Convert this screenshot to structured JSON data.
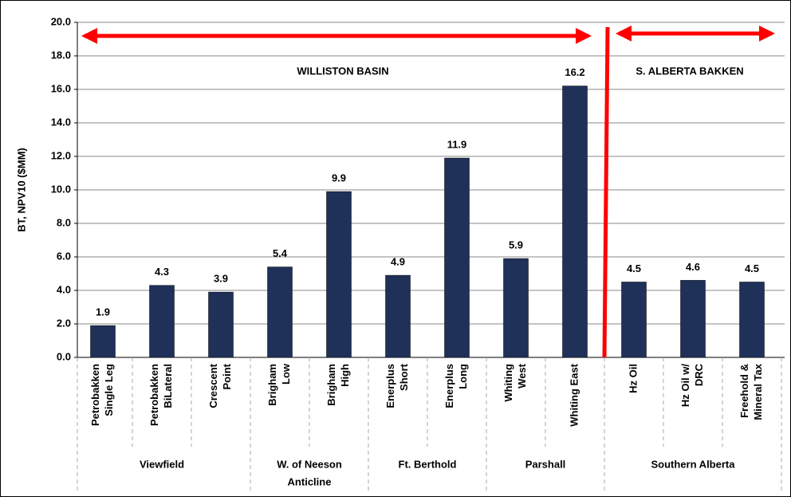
{
  "chart_data": {
    "type": "bar",
    "y_label": "BT, NPV10 ($MM)",
    "color": "#1f3159",
    "ylim": [
      0,
      20
    ],
    "yticks": [
      {
        "value": 0,
        "label": "0.0"
      },
      {
        "value": 2,
        "label": "2.0"
      },
      {
        "value": 4,
        "label": "4.0"
      },
      {
        "value": 6,
        "label": "6.0"
      },
      {
        "value": 8,
        "label": "8.0"
      },
      {
        "value": 10,
        "label": "10.0"
      },
      {
        "value": 12,
        "label": "12.0"
      },
      {
        "value": 14,
        "label": "14.0"
      },
      {
        "value": 16,
        "label": "16.0"
      },
      {
        "value": 18,
        "label": "18.0"
      },
      {
        "value": 20,
        "label": "20.0"
      }
    ],
    "grid": true,
    "annotations": [
      "WILLISTON BASIN",
      "S. ALBERTA BAKKEN"
    ],
    "groups": [
      {
        "name": [
          "Viewfield"
        ],
        "categories": [
          [
            "Petrobakken",
            "Single Leg"
          ],
          [
            "Petrobakken",
            "BiLateral"
          ],
          [
            "Crescent",
            "Point"
          ]
        ],
        "values": [
          1.9,
          4.3,
          3.9
        ]
      },
      {
        "name": [
          "W. of Neeson",
          "Anticline"
        ],
        "categories": [
          [
            "Brigham",
            "Low"
          ],
          [
            "Brigham",
            "High"
          ]
        ],
        "values": [
          5.4,
          9.9
        ]
      },
      {
        "name": [
          "Ft. Berthold"
        ],
        "categories": [
          [
            "Enerplus",
            "Short"
          ],
          [
            "Enerplus",
            "Long"
          ]
        ],
        "values": [
          4.9,
          11.9
        ]
      },
      {
        "name": [
          "Parshall"
        ],
        "categories": [
          [
            "Whiting",
            "West"
          ],
          [
            "Whiting East"
          ]
        ],
        "values": [
          5.9,
          16.2
        ]
      },
      {
        "name": [
          "Southern Alberta"
        ],
        "categories": [
          [
            "Hz Oil"
          ],
          [
            "Hz Oil w/",
            "DRC"
          ],
          [
            "Freehold &",
            "Mineral Tax"
          ]
        ],
        "values": [
          4.5,
          4.6,
          4.5
        ]
      }
    ]
  }
}
